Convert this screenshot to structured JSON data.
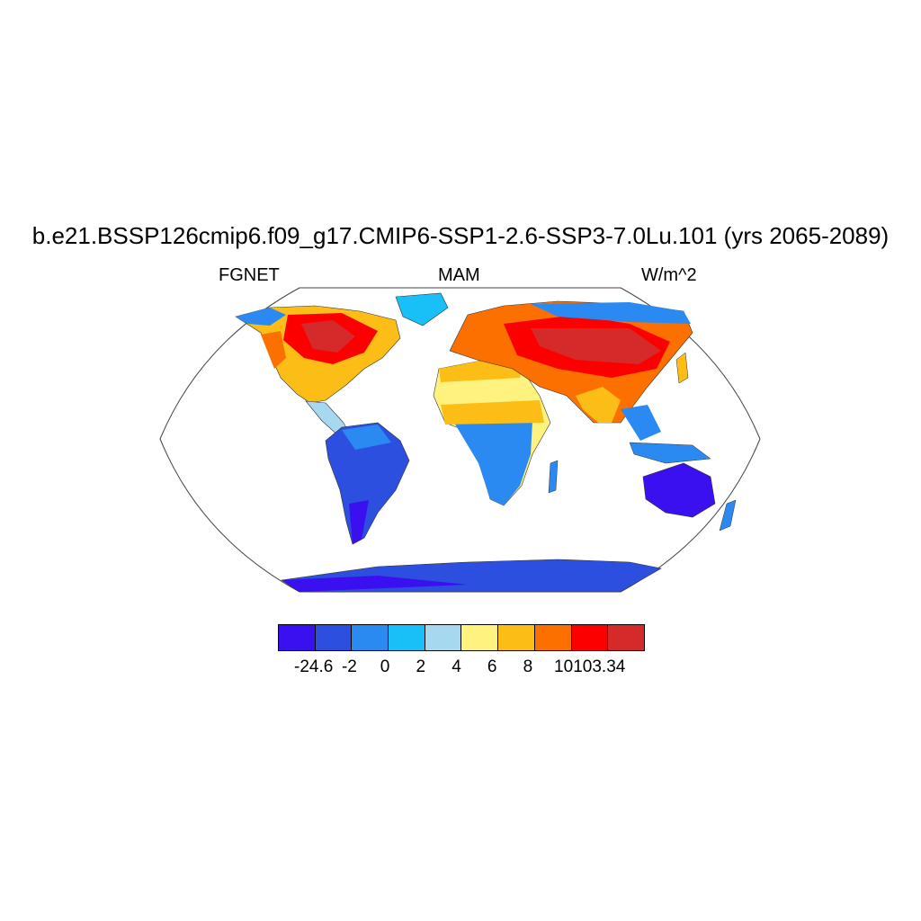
{
  "title": "b.e21.BSSP126cmip6.f09_g17.CMIP6-SSP1-2.6-SSP3-7.0Lu.101 (yrs 2065-2089)",
  "left_label": "FGNET",
  "center_label": "MAM",
  "right_label": "W/m^2",
  "colorbar": {
    "colors": [
      "#3a10f0",
      "#2c4fe0",
      "#2a8af2",
      "#19c0f7",
      "#a6d8f0",
      "#fff27e",
      "#fcbd16",
      "#fc7000",
      "#fc0000",
      "#d42a2a"
    ],
    "labels": [
      "-24.6",
      "-2",
      "0",
      "2",
      "4",
      "6",
      "8",
      "10",
      "103.34"
    ]
  },
  "map": {
    "projection": "robinson",
    "variable": "FGNET",
    "season": "MAM",
    "units": "W/m^2"
  }
}
